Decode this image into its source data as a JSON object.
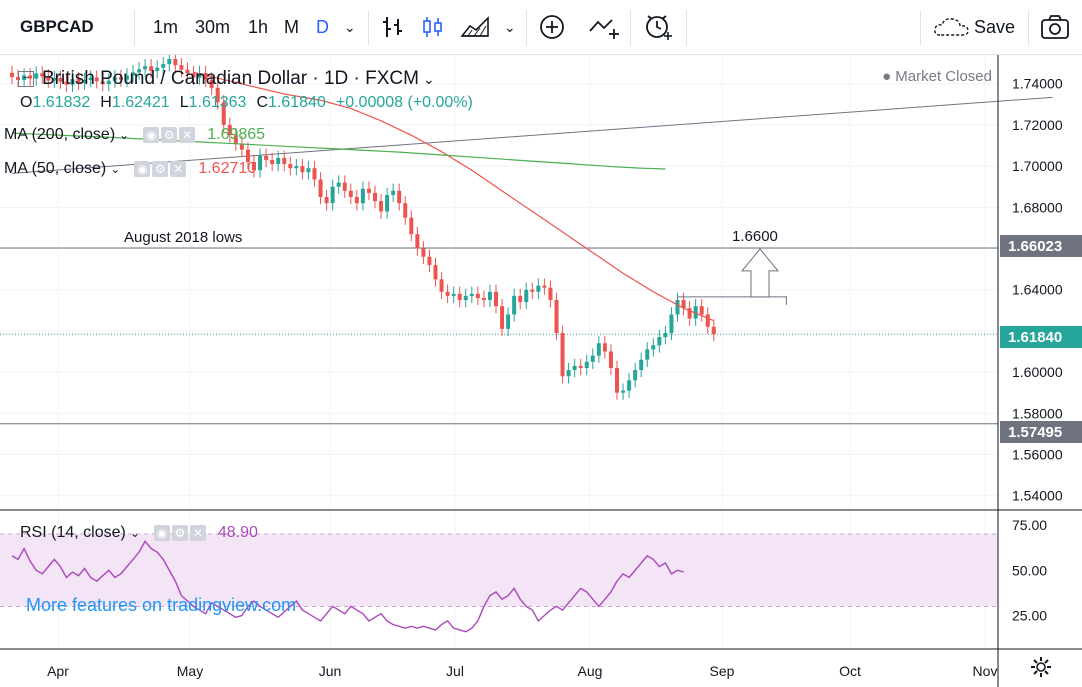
{
  "toolbar": {
    "symbol": "GBPCAD",
    "intervals": [
      "1m",
      "30m",
      "1h",
      "M",
      "D"
    ],
    "active_interval": "D",
    "save_label": "Save"
  },
  "legend": {
    "title": "British Pound / Canadian Dollar · 1D · FXCM",
    "ohlc": {
      "o_label": "O",
      "o": "1.61832",
      "h_label": "H",
      "h": "1.62421",
      "l_label": "L",
      "l": "1.61363",
      "c_label": "C",
      "c": "1.61840",
      "change": "+0.00008 (+0.00%)"
    },
    "ma200_label": "MA (200, close)",
    "ma200_value": "1.69865",
    "ma50_label": "MA (50, close)",
    "ma50_value": "1.62710",
    "rsi_label": "RSI (14, close)",
    "rsi_value": "48.90",
    "market_status": "● Market Closed"
  },
  "annotations": {
    "august_lows": "August 2018 lows",
    "target": "1.6600"
  },
  "badges": {
    "level_1": "1.66023",
    "last": "1.61840",
    "level_2": "1.57495"
  },
  "watermark": "More features on tradingview.com",
  "colors": {
    "up": "#26a69a",
    "down": "#ef5350",
    "ma50": "#ef5350",
    "ma200": "#4caf50",
    "rsi": "#ab47bc",
    "rsi_band": "#f3e5f5",
    "accent": "#2962ff"
  },
  "chart_data": {
    "type": "candlestick",
    "symbol": "GBPCAD",
    "timeframe": "1D",
    "x_ticks": [
      "Apr",
      "May",
      "Jun",
      "Jul",
      "Aug",
      "Sep",
      "Oct",
      "Nov"
    ],
    "price_ticks": [
      "1.54000",
      "1.56000",
      "1.58000",
      "1.60000",
      "1.62000",
      "1.64000",
      "1.66000",
      "1.68000",
      "1.70000",
      "1.72000",
      "1.74000"
    ],
    "ylim": [
      1.535,
      1.752
    ],
    "horizontal_levels": [
      1.66023,
      1.57495
    ],
    "last_price": 1.6184,
    "trendline": {
      "from": [
        0,
        1.6965
      ],
      "to": [
        172,
        1.7334
      ]
    },
    "closes": [
      1.7433,
      1.7418,
      1.744,
      1.7425,
      1.745,
      1.7436,
      1.7415,
      1.7428,
      1.741,
      1.7395,
      1.7422,
      1.7405,
      1.7418,
      1.743,
      1.7412,
      1.7398,
      1.7415,
      1.7432,
      1.742,
      1.744,
      1.7455,
      1.747,
      1.7485,
      1.7462,
      1.7478,
      1.7495,
      1.752,
      1.749,
      1.7468,
      1.745,
      1.743,
      1.7452,
      1.742,
      1.738,
      1.731,
      1.72,
      1.715,
      1.711,
      1.708,
      1.702,
      1.698,
      1.705,
      1.703,
      1.701,
      1.704,
      1.701,
      1.699,
      1.7,
      1.697,
      1.699,
      1.6935,
      1.685,
      1.682,
      1.69,
      1.692,
      1.688,
      1.685,
      1.682,
      1.689,
      1.687,
      1.683,
      1.678,
      1.686,
      1.688,
      1.682,
      1.675,
      1.667,
      1.66,
      1.656,
      1.652,
      1.645,
      1.639,
      1.637,
      1.638,
      1.635,
      1.637,
      1.638,
      1.636,
      1.635,
      1.639,
      1.632,
      1.621,
      1.628,
      1.637,
      1.634,
      1.64,
      1.639,
      1.642,
      1.641,
      1.635,
      1.619,
      1.598,
      1.601,
      1.603,
      1.602,
      1.605,
      1.608,
      1.614,
      1.61,
      1.602,
      1.59,
      1.591,
      1.596,
      1.601,
      1.606,
      1.611,
      1.613,
      1.617,
      1.619,
      1.628,
      1.635,
      1.631,
      1.626,
      1.632,
      1.628,
      1.622,
      1.6184
    ],
    "ma50": [
      1.7455,
      1.7448,
      1.7441,
      1.7434,
      1.7427,
      1.742,
      1.7413,
      1.7406,
      1.7399,
      1.7392,
      1.7385,
      1.7378,
      1.7371,
      1.7364,
      1.7357,
      1.735,
      1.7345,
      1.734,
      1.7335,
      1.733,
      1.7325,
      1.732,
      1.7312,
      1.7304,
      1.7296,
      1.7288,
      1.728,
      1.7268,
      1.7256,
      1.7244,
      1.7232,
      1.722,
      1.7206,
      1.7192,
      1.7178,
      1.7164,
      1.715,
      1.7134,
      1.7118,
      1.7102,
      1.7086,
      1.707,
      1.7052,
      1.7034,
      1.7016,
      1.6998,
      1.698,
      1.696,
      1.694,
      1.692,
      1.69,
      1.688,
      1.686,
      1.684,
      1.682,
      1.68,
      1.678,
      1.676,
      1.674,
      1.672,
      1.67,
      1.668,
      1.666,
      1.664,
      1.662,
      1.66,
      1.658,
      1.656,
      1.654,
      1.652,
      1.65,
      1.648,
      1.6462,
      1.6444,
      1.6426,
      1.6408,
      1.639,
      1.6374,
      1.6358,
      1.6342,
      1.6326,
      1.631,
      1.6298,
      1.6286,
      1.6274,
      1.6262,
      1.625
    ],
    "ma200": [
      1.716,
      1.7155,
      1.715,
      1.7145,
      1.714,
      1.7134,
      1.7128,
      1.7122,
      1.7116,
      1.711,
      1.7104,
      1.7098,
      1.7092,
      1.7086,
      1.708,
      1.7074,
      1.7068,
      1.706,
      1.7052,
      1.7044,
      1.7036,
      1.7028,
      1.702,
      1.7012,
      1.7004,
      1.6996,
      1.699,
      1.6986
    ],
    "rsi_ticks": [
      "25.00",
      "50.00",
      "75.00"
    ],
    "rsi_band": [
      30,
      70
    ],
    "rsi": [
      58,
      56,
      62,
      55,
      50,
      48,
      52,
      56,
      52,
      46,
      49,
      47,
      51,
      46,
      44,
      47,
      50,
      46,
      48,
      52,
      56,
      60,
      66,
      62,
      60,
      56,
      50,
      44,
      36,
      33,
      30,
      28,
      26,
      32,
      30,
      28,
      26,
      24,
      25,
      30,
      33,
      30,
      28,
      26,
      24,
      27,
      30,
      33,
      28,
      26,
      24,
      22,
      26,
      30,
      28,
      26,
      30,
      28,
      26,
      22,
      24,
      26,
      22,
      20,
      19,
      18,
      19,
      18,
      19,
      18,
      17,
      20,
      22,
      18,
      17,
      16,
      18,
      22,
      30,
      36,
      38,
      34,
      36,
      40,
      34,
      30,
      28,
      22,
      25,
      28,
      30,
      28,
      32,
      36,
      40,
      38,
      34,
      30,
      34,
      38,
      44,
      48,
      46,
      50,
      54,
      58,
      56,
      52,
      54,
      48,
      50,
      49
    ],
    "rsi_last": 48.9
  }
}
